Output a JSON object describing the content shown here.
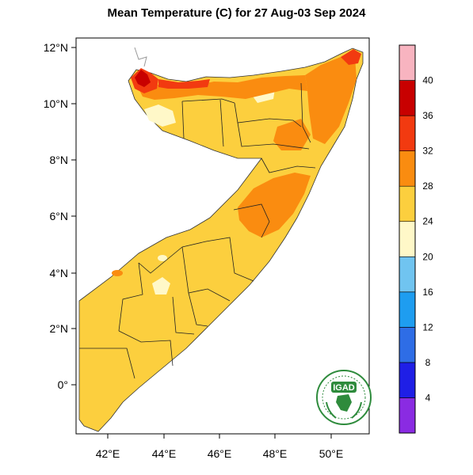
{
  "title": "Mean Temperature (C) for 27 Aug-03 Sep 2024",
  "map": {
    "lat_ticks": [
      "12°N",
      "10°N",
      "8°N",
      "6°N",
      "4°N",
      "2°N",
      "0°"
    ],
    "lon_ticks": [
      "42°E",
      "44°E",
      "46°E",
      "48°E",
      "50°E"
    ]
  },
  "colorbar": {
    "labels": [
      "4",
      "8",
      "12",
      "16",
      "20",
      "24",
      "28",
      "32",
      "36",
      "40"
    ],
    "colors": [
      "#8a2be2",
      "#1f1fe6",
      "#2e6de6",
      "#1e9df0",
      "#70c4f0",
      "#fff8c8",
      "#fccf3e",
      "#fa8c10",
      "#f23a10",
      "#c80000",
      "#f8b4c0"
    ]
  },
  "logo": {
    "text": "IGAD"
  }
}
